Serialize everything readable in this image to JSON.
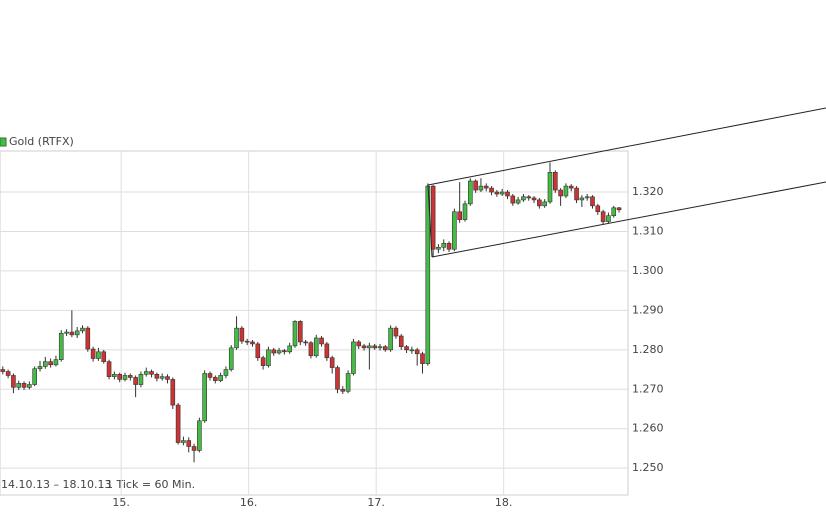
{
  "chart_data": {
    "type": "candlestick",
    "series_name": "Gold (RTFX)",
    "date_range": "14.10.13 – 18.10.13",
    "interval": "1 Tick = 60 Min.",
    "up_color": "#44bb44",
    "down_color": "#cc3333",
    "categories": [
      null,
      null,
      null,
      null,
      null,
      null,
      null,
      null,
      null,
      null,
      null,
      null,
      null,
      null,
      null,
      null,
      null,
      null,
      null,
      null,
      null,
      null,
      "15.",
      null,
      null,
      null,
      null,
      null,
      null,
      null,
      null,
      null,
      null,
      null,
      null,
      null,
      null,
      null,
      null,
      null,
      null,
      null,
      null,
      null,
      null,
      null,
      "16.",
      null,
      null,
      null,
      null,
      null,
      null,
      null,
      null,
      null,
      null,
      null,
      null,
      null,
      null,
      null,
      null,
      null,
      null,
      null,
      null,
      null,
      null,
      null,
      "17.",
      null,
      null,
      null,
      null,
      null,
      null,
      null,
      null,
      null,
      null,
      null,
      null,
      null,
      null,
      null,
      null,
      null,
      null,
      null,
      null,
      null,
      null,
      null,
      "18.",
      null,
      null,
      null,
      null,
      null,
      null,
      null,
      null,
      null,
      null,
      null,
      null,
      null,
      null,
      null,
      null,
      null,
      null,
      null,
      null,
      null,
      null
    ],
    "open": [
      1.275,
      1.2745,
      1.2735,
      1.2705,
      1.2715,
      1.2705,
      1.2712,
      1.2752,
      1.2758,
      1.277,
      1.2762,
      1.2775,
      1.2842,
      1.2845,
      1.2838,
      1.2848,
      1.2855,
      1.2802,
      1.2778,
      1.2795,
      1.277,
      1.2732,
      1.2738,
      1.2725,
      1.2735,
      1.273,
      1.2712,
      1.2738,
      1.2745,
      1.2738,
      1.2728,
      1.2732,
      1.2725,
      1.266,
      1.2565,
      1.257,
      1.2555,
      1.2545,
      1.262,
      1.274,
      1.273,
      1.2722,
      1.2735,
      1.275,
      1.2805,
      1.2855,
      1.2822,
      1.282,
      1.2815,
      1.278,
      1.276,
      1.28,
      1.2792,
      1.2798,
      1.2795,
      1.281,
      1.2872,
      1.282,
      1.2818,
      1.2785,
      1.283,
      1.2815,
      1.278,
      1.2755,
      1.27,
      1.2695,
      1.274,
      1.282,
      1.281,
      1.2805,
      1.281,
      1.2805,
      1.2808,
      1.28,
      1.2855,
      1.2835,
      1.2808,
      1.28,
      1.28,
      1.279,
      1.2765,
      1.3215,
      1.3055,
      1.306,
      1.307,
      1.3055,
      1.315,
      1.313,
      1.317,
      1.3228,
      1.3205,
      1.3215,
      1.321,
      1.32,
      1.3195,
      1.32,
      1.319,
      1.3172,
      1.318,
      1.3188,
      1.3185,
      1.318,
      1.3165,
      1.3175,
      1.325,
      1.3205,
      1.319,
      1.3215,
      1.321,
      1.318,
      1.3185,
      1.3188,
      1.3165,
      1.315,
      1.3125,
      1.314,
      1.316
    ],
    "high": [
      1.2758,
      1.275,
      1.274,
      1.2722,
      1.272,
      1.272,
      1.2758,
      1.2772,
      1.2782,
      1.2778,
      1.2785,
      1.285,
      1.2852,
      1.29,
      1.2858,
      1.2862,
      1.286,
      1.2808,
      1.2805,
      1.28,
      1.2775,
      1.2745,
      1.2742,
      1.2742,
      1.274,
      1.2735,
      1.2745,
      1.2755,
      1.275,
      1.2742,
      1.274,
      1.2738,
      1.273,
      1.2665,
      1.258,
      1.2578,
      1.2562,
      1.2628,
      1.2748,
      1.2745,
      1.2735,
      1.2742,
      1.2758,
      1.2812,
      1.2885,
      1.286,
      1.2828,
      1.2825,
      1.282,
      1.2785,
      1.2808,
      1.2805,
      1.2805,
      1.2802,
      1.2818,
      1.2875,
      1.2875,
      1.2825,
      1.2822,
      1.2838,
      1.2835,
      1.282,
      1.2785,
      1.276,
      1.2708,
      1.2748,
      1.2828,
      1.2825,
      1.2815,
      1.2818,
      1.2815,
      1.2815,
      1.2812,
      1.2862,
      1.286,
      1.284,
      1.2812,
      1.2808,
      1.2805,
      1.2795,
      1.3222,
      1.3218,
      1.3068,
      1.308,
      1.3075,
      1.3158,
      1.3225,
      1.3178,
      1.3235,
      1.3232,
      1.3235,
      1.3222,
      1.3215,
      1.3205,
      1.3208,
      1.3205,
      1.3195,
      1.3188,
      1.3195,
      1.3192,
      1.319,
      1.3185,
      1.3182,
      1.3275,
      1.3255,
      1.321,
      1.3222,
      1.322,
      1.3215,
      1.3192,
      1.3195,
      1.3192,
      1.317,
      1.3155,
      1.3148,
      1.3165,
      1.3162
    ],
    "low": [
      1.2738,
      1.2728,
      1.269,
      1.2698,
      1.2698,
      1.27,
      1.2708,
      1.2745,
      1.2752,
      1.2755,
      1.2758,
      1.277,
      1.2835,
      1.2832,
      1.283,
      1.2842,
      1.2795,
      1.277,
      1.2772,
      1.2765,
      1.2725,
      1.2725,
      1.2718,
      1.272,
      1.2722,
      1.268,
      1.2705,
      1.2732,
      1.273,
      1.272,
      1.2722,
      1.2715,
      1.265,
      1.256,
      1.2558,
      1.254,
      1.2515,
      1.254,
      1.2615,
      1.2722,
      1.2715,
      1.2718,
      1.2728,
      1.2745,
      1.28,
      1.2815,
      1.2812,
      1.2808,
      1.2772,
      1.275,
      1.2755,
      1.2785,
      1.2788,
      1.2788,
      1.279,
      1.2805,
      1.2812,
      1.281,
      1.2778,
      1.278,
      1.2808,
      1.2772,
      1.274,
      1.269,
      1.2688,
      1.269,
      1.2735,
      1.2802,
      1.2798,
      1.275,
      1.28,
      1.2798,
      1.2795,
      1.2795,
      1.2828,
      1.28,
      1.2792,
      1.279,
      1.276,
      1.274,
      1.276,
      1.3035,
      1.3045,
      1.305,
      1.3048,
      1.305,
      1.3122,
      1.3125,
      1.3165,
      1.3198,
      1.32,
      1.3202,
      1.3192,
      1.3188,
      1.319,
      1.3182,
      1.3165,
      1.3168,
      1.3175,
      1.3178,
      1.3172,
      1.3158,
      1.316,
      1.317,
      1.3198,
      1.3165,
      1.3185,
      1.3202,
      1.3172,
      1.3162,
      1.3178,
      1.3158,
      1.3142,
      1.3118,
      1.312,
      1.3135,
      1.3148
    ],
    "close": [
      1.2745,
      1.2735,
      1.2705,
      1.2715,
      1.2705,
      1.2712,
      1.2752,
      1.2758,
      1.277,
      1.2762,
      1.2775,
      1.2842,
      1.2845,
      1.2838,
      1.2848,
      1.2855,
      1.2802,
      1.2778,
      1.2795,
      1.277,
      1.2732,
      1.2738,
      1.2725,
      1.2735,
      1.273,
      1.2712,
      1.2738,
      1.2745,
      1.2738,
      1.2728,
      1.2732,
      1.2725,
      1.266,
      1.2565,
      1.257,
      1.2555,
      1.2545,
      1.262,
      1.274,
      1.273,
      1.2722,
      1.2735,
      1.275,
      1.2805,
      1.2855,
      1.2822,
      1.282,
      1.2815,
      1.278,
      1.276,
      1.28,
      1.2792,
      1.2798,
      1.2795,
      1.281,
      1.2872,
      1.282,
      1.2818,
      1.2785,
      1.283,
      1.2815,
      1.278,
      1.2755,
      1.27,
      1.2695,
      1.274,
      1.282,
      1.281,
      1.2805,
      1.281,
      1.2805,
      1.2808,
      1.28,
      1.2855,
      1.2835,
      1.2808,
      1.28,
      1.28,
      1.279,
      1.2765,
      1.3215,
      1.3055,
      1.306,
      1.307,
      1.3055,
      1.315,
      1.313,
      1.317,
      1.3228,
      1.3205,
      1.3215,
      1.321,
      1.32,
      1.3195,
      1.32,
      1.319,
      1.3172,
      1.318,
      1.3188,
      1.3185,
      1.318,
      1.3165,
      1.3175,
      1.325,
      1.3205,
      1.319,
      1.3215,
      1.321,
      1.318,
      1.3185,
      1.3188,
      1.3165,
      1.315,
      1.3125,
      1.314,
      1.316,
      1.3155
    ],
    "ylim": [
      1.2432,
      1.3304
    ],
    "yticks": [
      {
        "value": 1.25,
        "label": "1.250"
      },
      {
        "value": 1.26,
        "label": "1.260"
      },
      {
        "value": 1.27,
        "label": "1.270"
      },
      {
        "value": 1.28,
        "label": "1.280"
      },
      {
        "value": 1.29,
        "label": "1.290"
      },
      {
        "value": 1.3,
        "label": "1.300"
      },
      {
        "value": 1.31,
        "label": "1.310"
      },
      {
        "value": 1.32,
        "label": "1.320"
      }
    ],
    "grid": true
  }
}
